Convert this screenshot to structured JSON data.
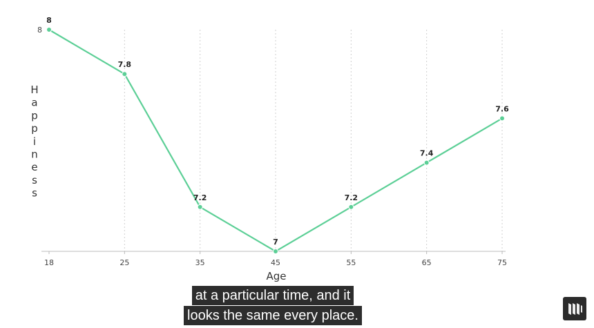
{
  "chart_data": {
    "type": "line",
    "xlabel": "Age",
    "ylabel": "Happiness",
    "categories": [
      "18",
      "25",
      "35",
      "45",
      "55",
      "65",
      "75"
    ],
    "x": [
      18,
      25,
      35,
      45,
      55,
      65,
      75
    ],
    "values": [
      8,
      7.8,
      7.2,
      7,
      7.2,
      7.4,
      7.6
    ],
    "data_labels": [
      "8",
      "7.8",
      "7.2",
      "7",
      "7.2",
      "7.4",
      "7.6"
    ],
    "y_ticks": [
      "8"
    ],
    "ylim": [
      7,
      8
    ],
    "grid": "vertical dotted",
    "line_color": "#5ccf96"
  },
  "captions": {
    "line1": "at a particular time, and it",
    "line2": "looks the same every place."
  },
  "logo": {
    "icon": "watermark-logo-icon"
  }
}
